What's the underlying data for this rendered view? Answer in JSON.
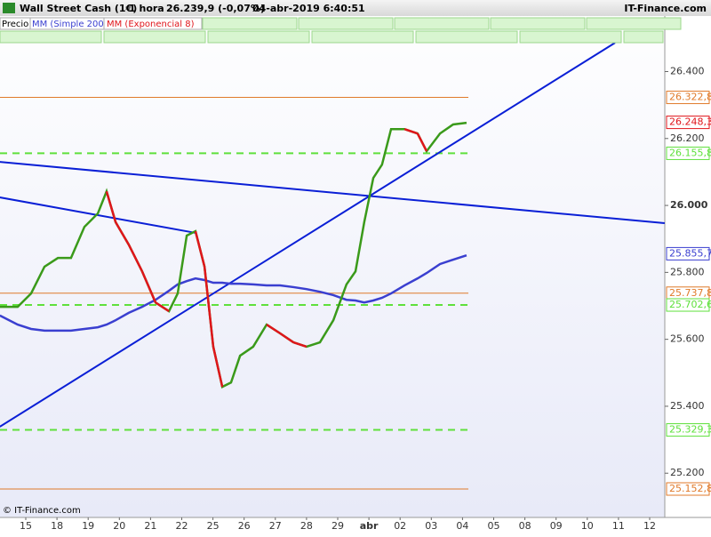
{
  "header": {
    "title": "Wall Street Cash (1€)",
    "interval": "1 hora",
    "quote": "26.239,9 (-0,07%)",
    "datetime": "04-abr-2019 6:40:51",
    "brand": "IT-Finance.com"
  },
  "legend": [
    "Precio",
    "MM (Simple 200)",
    "MM (Exponencial 8)"
  ],
  "footer": "© IT-Finance.com",
  "chart_data": {
    "type": "line",
    "categories": [
      "15",
      "18",
      "19",
      "20",
      "21",
      "22",
      "25",
      "26",
      "27",
      "28",
      "29",
      "abr",
      "02",
      "03",
      "04",
      "05",
      "08",
      "09",
      "10",
      "11",
      "12"
    ],
    "x": [
      -0.83,
      -0.26,
      0.17,
      0.6,
      1.03,
      1.45,
      1.88,
      2.31,
      2.59,
      2.88,
      3.3,
      3.73,
      4.16,
      4.59,
      4.87,
      5.16,
      5.44,
      5.73,
      6.01,
      6.3,
      6.58,
      6.87,
      7.29,
      7.72,
      8.15,
      8.58,
      9.0,
      9.43,
      9.86,
      10.28,
      10.57,
      10.85,
      11.14,
      11.42,
      11.71,
      12.14,
      12.56,
      12.85,
      13.28,
      13.7,
      14.13
    ],
    "series": [
      {
        "name": "MM (Simple 200)",
        "color": "#3a3fd0",
        "values": [
          25671,
          25644,
          25631,
          25626,
          25626,
          25626,
          25631,
          25636,
          25644,
          25657,
          25679,
          25697,
          25718,
          25745,
          25764,
          25774,
          25782,
          25777,
          25769,
          25769,
          25766,
          25766,
          25764,
          25761,
          25761,
          25756,
          25750,
          25742,
          25732,
          25718,
          25716,
          25710,
          25716,
          25724,
          25737,
          25761,
          25782,
          25798,
          25825,
          25838,
          25851
        ]
      },
      {
        "name": "MM (Exponencial 8)",
        "color": "#3a9a1a",
        "down_color": "#e0151b",
        "values": [
          25697,
          25697,
          25737,
          25817,
          25843,
          25843,
          25936,
          25976,
          26042,
          25950,
          25883,
          25803,
          25710,
          25684,
          25737,
          25910,
          25923,
          25817,
          25578,
          25458,
          25471,
          25551,
          25578,
          25644,
          25618,
          25591,
          25578,
          25591,
          25657,
          25764,
          25803,
          25950,
          26082,
          26122,
          26228,
          26228,
          26215,
          26162,
          26215,
          26242,
          26247
        ]
      }
    ],
    "trendlines": [
      {
        "color": "#0a1fd6",
        "x": [
          -0.83,
          18.89
        ],
        "values": [
          25339,
          26486
        ]
      },
      {
        "color": "#0a1fd6",
        "x": [
          -0.83,
          20.48
        ],
        "values": [
          26130,
          25947
        ]
      },
      {
        "color": "#0a1fd6",
        "x": [
          -0.83,
          5.44
        ],
        "values": [
          26024,
          25918
        ]
      }
    ],
    "levels": [
      {
        "value": 26322.8,
        "label": "26.322,8",
        "color": "#e07a2a",
        "dashed": false
      },
      {
        "value": 26248.3,
        "label": "26.248,3",
        "color": "#e0151b",
        "tag_only": true
      },
      {
        "value": 26155.8,
        "label": "26.155,8",
        "color": "#5fe03c",
        "dashed": true
      },
      {
        "value": 25855.7,
        "label": "25.855,7",
        "color": "#3a3fd0",
        "tag_only": true
      },
      {
        "value": 25737.8,
        "label": "25.737,8",
        "color": "#e07a2a",
        "dashed": false
      },
      {
        "value": 25702.6,
        "label": "25.702,6",
        "color": "#5fe03c",
        "dashed": true
      },
      {
        "value": 25329.3,
        "label": "25.329,3",
        "color": "#5fe03c",
        "dashed": true
      },
      {
        "value": 25152.8,
        "label": "25.152,8",
        "color": "#e07a2a",
        "dashed": false
      }
    ],
    "ylim": [
      25105,
      26566
    ],
    "yticks": [
      {
        "value": 25200,
        "label": "25.200"
      },
      {
        "value": 25400,
        "label": "25.400"
      },
      {
        "value": 25600,
        "label": "25.600"
      },
      {
        "value": 25800,
        "label": "25.800"
      },
      {
        "value": 26000,
        "label": "26.000"
      },
      {
        "value": 26200,
        "label": "26.200"
      },
      {
        "value": 26400,
        "label": "26.400"
      }
    ]
  }
}
